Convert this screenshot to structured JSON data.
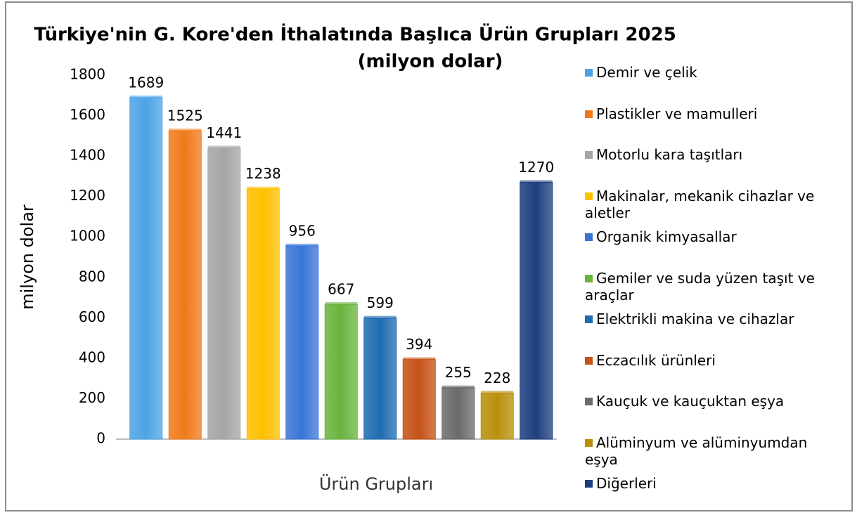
{
  "chart_data": {
    "type": "bar",
    "title": "Türkiye'nin G. Kore'den İthalatında Başlıca Ürün Grupları 2025",
    "subtitle": "(milyon dolar)",
    "y_label": "milyon dolar",
    "x_label": "Ürün Grupları",
    "ylim": [
      0,
      1800
    ],
    "yticks": [
      0,
      200,
      400,
      600,
      800,
      1000,
      1200,
      1400,
      1600,
      1800
    ],
    "grid": false,
    "legend": "right",
    "series": [
      {
        "name": "Demir ve çelik",
        "color": "#4da3e6",
        "values": [
          1689
        ]
      },
      {
        "name": "Plastikler ve mamulleri",
        "color": "#f07a1a",
        "values": [
          1525
        ]
      },
      {
        "name": "Motorlu kara taşıtları",
        "color": "#a5a5a5",
        "values": [
          1441
        ]
      },
      {
        "name": "Makinalar, mekanik cihazlar ve aletler",
        "color": "#ffc000",
        "values": [
          1238
        ]
      },
      {
        "name": "Organik kimyasallar",
        "color": "#3a75d6",
        "values": [
          956
        ]
      },
      {
        "name": "Gemiler ve suda yüzen taşıt ve araçlar",
        "color": "#6ab43e",
        "values": [
          667
        ]
      },
      {
        "name": "Elektrikli makina ve cihazlar",
        "color": "#1f6bb0",
        "values": [
          599
        ]
      },
      {
        "name": "Eczacılık ürünleri",
        "color": "#c65217",
        "values": [
          394
        ]
      },
      {
        "name": "Kauçuk ve kauçuktan eşya",
        "color": "#6b6b6b",
        "values": [
          255
        ]
      },
      {
        "name": "Alüminyum ve alüminyumdan eşya",
        "color": "#b8900b",
        "values": [
          228
        ]
      },
      {
        "name": "Diğerleri",
        "color": "#1e3f7f",
        "values": [
          1270
        ]
      }
    ]
  }
}
